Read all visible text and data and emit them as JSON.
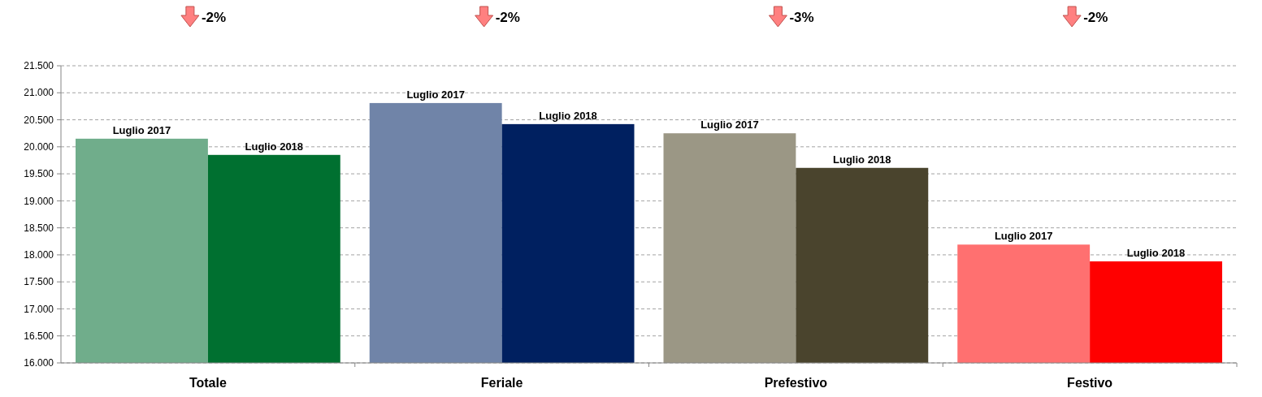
{
  "chart_data": {
    "type": "bar",
    "categories": [
      "Totale",
      "Feriale",
      "Prefestivo",
      "Festivo"
    ],
    "series": [
      {
        "name": "Luglio 2017",
        "colors": [
          "#70ad8b",
          "#7084a8",
          "#9b9785",
          "#ff7070"
        ],
        "values": [
          20150,
          20810,
          20250,
          18190
        ]
      },
      {
        "name": "Luglio 2018",
        "colors": [
          "#007030",
          "#002060",
          "#4a442d",
          "#ff0000"
        ],
        "values": [
          19850,
          20420,
          19610,
          17880
        ]
      }
    ],
    "ylim": [
      16000,
      21500
    ],
    "yticks": [
      {
        "value": 16000,
        "label": "16.000"
      },
      {
        "value": 16500,
        "label": "16.500"
      },
      {
        "value": 17000,
        "label": "17.000"
      },
      {
        "value": 17500,
        "label": "17.500"
      },
      {
        "value": 18000,
        "label": "18.000"
      },
      {
        "value": 18500,
        "label": "18.500"
      },
      {
        "value": 19000,
        "label": "19.000"
      },
      {
        "value": 19500,
        "label": "19.500"
      },
      {
        "value": 20000,
        "label": "20.000"
      },
      {
        "value": 20500,
        "label": "20.500"
      },
      {
        "value": 21000,
        "label": "21.000"
      },
      {
        "value": 21500,
        "label": "21.500"
      }
    ],
    "grid": "y",
    "annotations": [
      "-2%",
      "-2%",
      "-3%",
      "-2%"
    ]
  }
}
